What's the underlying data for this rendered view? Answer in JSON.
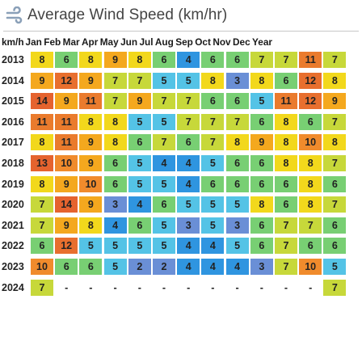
{
  "page": {
    "title": "Average Wind Speed (km/hr)",
    "unit_label": "km/h",
    "months": [
      "Jan",
      "Feb",
      "Mar",
      "Apr",
      "May",
      "Jun",
      "Jul",
      "Aug",
      "Sep",
      "Oct",
      "Nov",
      "Dec"
    ],
    "last_header": "Year"
  },
  "colors": {
    "c3": "#6a8fd6",
    "c4": "#2f95e0",
    "c5": "#54c3e6",
    "c6": "#78cf73",
    "c7": "#c7d83a",
    "c8": "#f2d81c",
    "c9": "#f4a81e",
    "c10": "#f08b2c",
    "c11": "#ea7b2d",
    "c12": "#e86f2e",
    "c13": "#e5632e",
    "cNone": "#ffffff"
  },
  "rows": [
    {
      "year": "2013",
      "values": [
        8,
        6,
        8,
        9,
        8,
        6,
        4,
        6,
        6,
        7,
        7,
        11
      ],
      "annual": "7"
    },
    {
      "year": "2014",
      "values": [
        9,
        12,
        9,
        7,
        7,
        5,
        5,
        8,
        3,
        8,
        6,
        12
      ],
      "annual": "8"
    },
    {
      "year": "2015",
      "values": [
        14,
        9,
        11,
        7,
        9,
        7,
        7,
        6,
        6,
        5,
        11,
        12
      ],
      "annual": "9"
    },
    {
      "year": "2016",
      "values": [
        11,
        11,
        8,
        8,
        5,
        5,
        7,
        7,
        7,
        6,
        8,
        6
      ],
      "annual": "7"
    },
    {
      "year": "2017",
      "values": [
        8,
        11,
        9,
        8,
        6,
        7,
        6,
        7,
        8,
        9,
        8,
        10
      ],
      "annual": "8"
    },
    {
      "year": "2018",
      "values": [
        13,
        10,
        9,
        6,
        5,
        4,
        4,
        5,
        6,
        6,
        8,
        8
      ],
      "annual": "7"
    },
    {
      "year": "2019",
      "values": [
        8,
        9,
        10,
        6,
        5,
        5,
        4,
        6,
        6,
        6,
        6,
        8
      ],
      "annual": "6"
    },
    {
      "year": "2020",
      "values": [
        7,
        14,
        9,
        3,
        4,
        6,
        5,
        5,
        5,
        8,
        6,
        8
      ],
      "annual": "7"
    },
    {
      "year": "2021",
      "values": [
        7,
        9,
        8,
        4,
        6,
        5,
        3,
        5,
        3,
        6,
        7,
        7
      ],
      "annual": "6"
    },
    {
      "year": "2022",
      "values": [
        6,
        12,
        5,
        5,
        5,
        5,
        4,
        4,
        5,
        6,
        7,
        6
      ],
      "annual": "6"
    },
    {
      "year": "2023",
      "values": [
        10,
        6,
        6,
        5,
        2,
        2,
        4,
        4,
        4,
        3,
        7,
        10
      ],
      "annual": "5"
    },
    {
      "year": "2024",
      "values": [
        7,
        null,
        null,
        null,
        null,
        null,
        null,
        null,
        null,
        null,
        null,
        null
      ],
      "annual": "7"
    }
  ]
}
